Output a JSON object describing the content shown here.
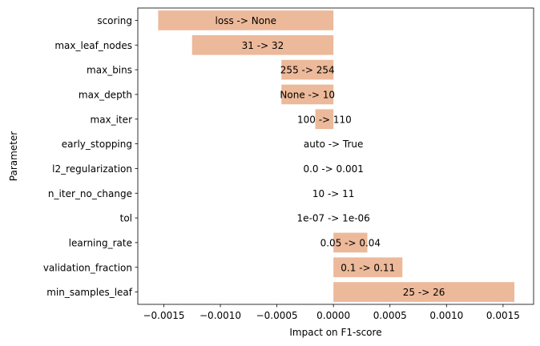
{
  "chart_data": {
    "type": "bar",
    "orientation": "horizontal",
    "xlabel": "Impact on F1-score",
    "ylabel": "Parameter",
    "xlim": [
      -0.00173,
      0.00177
    ],
    "xticks": [
      -0.0015,
      -0.001,
      -0.0005,
      0,
      0.0005,
      0.001,
      0.0015
    ],
    "xtick_labels": [
      "−0.0015",
      "−0.0010",
      "−0.0005",
      "0.0000",
      "0.0005",
      "0.0010",
      "0.0015"
    ],
    "bar_color": "#ecb99a",
    "grid": false,
    "categories": [
      "scoring",
      "max_leaf_nodes",
      "max_bins",
      "max_depth",
      "max_iter",
      "early_stopping",
      "l2_regularization",
      "n_iter_no_change",
      "tol",
      "learning_rate",
      "validation_fraction",
      "min_samples_leaf"
    ],
    "values": [
      -0.00155,
      -0.00125,
      -0.00046,
      -0.00046,
      -0.00016,
      0,
      0,
      0,
      0,
      0.0003,
      0.00061,
      0.0016
    ],
    "bar_labels": [
      "loss -> None",
      "31 -> 32",
      "255 -> 254",
      "None -> 10",
      "100 -> 110",
      "auto -> True",
      "0.0 -> 0.001",
      "10 -> 11",
      "1e-07 -> 1e-06",
      "0.05 -> 0.04",
      "0.1 -> 0.11",
      "25 -> 26"
    ]
  }
}
